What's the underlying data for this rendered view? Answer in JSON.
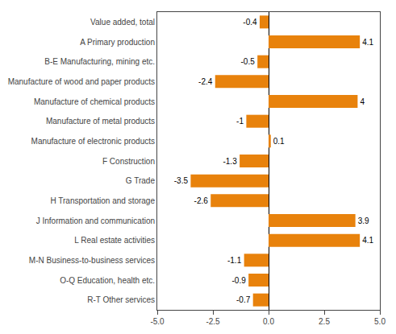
{
  "chart_data": {
    "type": "bar",
    "orientation": "horizontal",
    "categories": [
      "Value added, total",
      "A Primary production",
      "B-E Manufacturing, mining etc.",
      "Manufacture of wood and paper products",
      "Manufacture of chemical products",
      "Manufacture of metal products",
      "Manufacture of electronic products",
      "F Construction",
      "G Trade",
      "H Transportation and storage",
      "J Information and communication",
      "L Real estate activities",
      "M-N Business-to-business services",
      "O-Q Education, health etc.",
      "R-T Other services"
    ],
    "values": [
      -0.4,
      4.1,
      -0.5,
      -2.4,
      4.0,
      -1.0,
      0.1,
      -1.3,
      -3.5,
      -2.6,
      3.9,
      4.1,
      -1.1,
      -0.9,
      -0.7
    ],
    "color": "#E8820C",
    "xlim": [
      -5.0,
      5.0
    ],
    "xticks": [
      {
        "value": -5.0,
        "label": "-5.0"
      },
      {
        "value": -2.5,
        "label": "-2.5"
      },
      {
        "value": 0.0,
        "label": "0.0"
      },
      2.5,
      {
        "value": 5.0,
        "label": "5.0"
      }
    ],
    "data_labels": true,
    "grid": false
  }
}
